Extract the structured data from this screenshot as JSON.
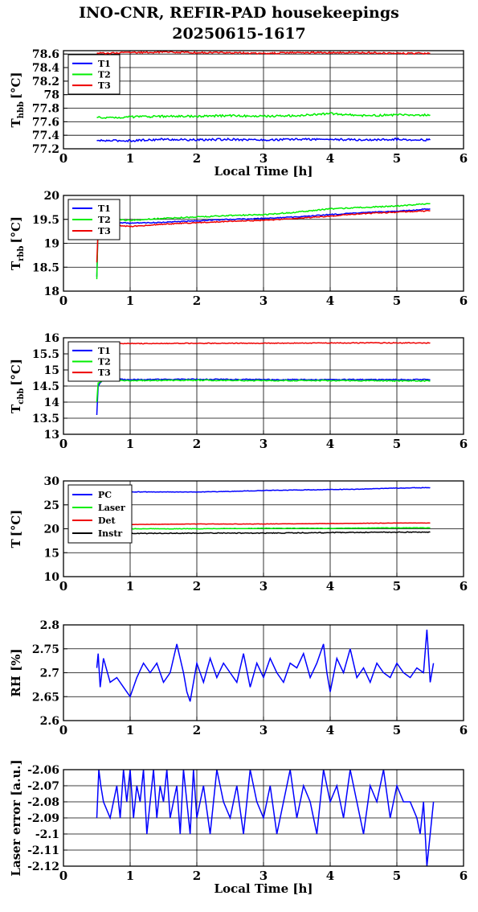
{
  "title_line1": "INO-CNR, REFIR-PAD housekeepings",
  "title_line2": "20250615-1617",
  "colors": {
    "blue": "#0000ff",
    "green": "#00ee00",
    "red": "#ee0000",
    "black": "#000000"
  },
  "chart_data": [
    {
      "type": "line",
      "ylabel": "T_hbb [°C]",
      "ylabel_main": "T",
      "ylabel_sub": "hbb",
      "ylabel_unit": "[°C]",
      "xlabel": "Local Time [h]",
      "xlim": [
        0,
        6
      ],
      "ylim": [
        77.2,
        78.65
      ],
      "yticks": [
        77.2,
        77.4,
        77.6,
        77.8,
        78,
        78.2,
        78.4,
        78.6
      ],
      "ytick_labels": [
        "77.2",
        "77.4",
        "77.6",
        "77.8",
        "78",
        "78.2",
        "78.4",
        "78.6"
      ],
      "xticks": [
        0,
        1,
        2,
        3,
        4,
        5,
        6
      ],
      "xtick_labels": [
        "0",
        "1",
        "2",
        "3",
        "4",
        "5",
        "6"
      ],
      "grid": true,
      "legend": "top-left",
      "series": [
        {
          "name": "T1",
          "color": "#0000ff",
          "x": [
            0.5,
            1,
            1.5,
            2,
            2.5,
            3,
            3.5,
            4,
            4.5,
            5,
            5.5
          ],
          "values": [
            77.32,
            77.32,
            77.34,
            77.33,
            77.34,
            77.33,
            77.34,
            77.34,
            77.33,
            77.34,
            77.33
          ],
          "noise": 0.015
        },
        {
          "name": "T2",
          "color": "#00ee00",
          "x": [
            0.5,
            1,
            1.5,
            2,
            2.5,
            3,
            3.5,
            4,
            4.5,
            5,
            5.5
          ],
          "values": [
            77.66,
            77.67,
            77.68,
            77.68,
            77.69,
            77.68,
            77.69,
            77.72,
            77.69,
            77.7,
            77.7
          ],
          "noise": 0.015
        },
        {
          "name": "T3",
          "color": "#ee0000",
          "x": [
            0.5,
            1,
            1.5,
            2,
            2.5,
            3,
            3.5,
            4,
            4.5,
            5,
            5.5
          ],
          "values": [
            78.61,
            78.62,
            78.63,
            78.62,
            78.62,
            78.61,
            78.62,
            78.62,
            78.62,
            78.61,
            78.61
          ],
          "noise": 0.012
        }
      ]
    },
    {
      "type": "line",
      "ylabel": "T_rbb [°C]",
      "ylabel_main": "T",
      "ylabel_sub": "rbb",
      "ylabel_unit": "[°C]",
      "xlabel": "",
      "xlim": [
        0,
        6
      ],
      "ylim": [
        18,
        20
      ],
      "yticks": [
        18,
        18.5,
        19,
        19.5,
        20
      ],
      "ytick_labels": [
        "18",
        "18.5",
        "19",
        "19.5",
        "20"
      ],
      "xticks": [
        0,
        1,
        2,
        3,
        4,
        5,
        6
      ],
      "xtick_labels": [
        "0",
        "1",
        "2",
        "3",
        "4",
        "5",
        "6"
      ],
      "grid": true,
      "legend": "top-left",
      "series": [
        {
          "name": "T1",
          "color": "#0000ff",
          "x": [
            0.5,
            0.52,
            0.6,
            1,
            1.5,
            2,
            2.5,
            3,
            3.5,
            4,
            4.5,
            5,
            5.5
          ],
          "values": [
            18.3,
            19.35,
            19.45,
            19.42,
            19.44,
            19.47,
            19.5,
            19.52,
            19.55,
            19.6,
            19.64,
            19.67,
            19.72
          ],
          "noise": 0.01
        },
        {
          "name": "T2",
          "color": "#00ee00",
          "x": [
            0.5,
            0.52,
            0.6,
            1,
            1.5,
            2,
            2.5,
            3,
            3.5,
            4,
            4.5,
            5,
            5.5
          ],
          "values": [
            18.25,
            19.4,
            19.5,
            19.48,
            19.52,
            19.55,
            19.58,
            19.6,
            19.65,
            19.72,
            19.75,
            19.78,
            19.83
          ],
          "noise": 0.012
        },
        {
          "name": "T3",
          "color": "#ee0000",
          "x": [
            0.5,
            0.52,
            0.6,
            1,
            1.5,
            2,
            2.5,
            3,
            3.5,
            4,
            4.5,
            5,
            5.5
          ],
          "values": [
            18.6,
            19.3,
            19.4,
            19.35,
            19.4,
            19.43,
            19.46,
            19.48,
            19.52,
            19.57,
            19.62,
            19.65,
            19.68
          ],
          "noise": 0.01
        }
      ]
    },
    {
      "type": "line",
      "ylabel": "T_cbb [°C]",
      "ylabel_main": "T",
      "ylabel_sub": "cbb",
      "ylabel_unit": "[°C]",
      "xlabel": "",
      "xlim": [
        0,
        6
      ],
      "ylim": [
        13,
        16
      ],
      "yticks": [
        13,
        13.5,
        14,
        14.5,
        15,
        15.5,
        16
      ],
      "ytick_labels": [
        "13",
        "13.5",
        "14",
        "14.5",
        "15",
        "15.5",
        "16"
      ],
      "xticks": [
        0,
        1,
        2,
        3,
        4,
        5,
        6
      ],
      "xtick_labels": [
        "0",
        "1",
        "2",
        "3",
        "4",
        "5",
        "6"
      ],
      "grid": true,
      "legend": "top-left",
      "series": [
        {
          "name": "T1",
          "color": "#0000ff",
          "x": [
            0.5,
            0.52,
            0.6,
            1,
            2,
            3,
            4,
            5,
            5.5
          ],
          "values": [
            13.6,
            14.5,
            14.72,
            14.7,
            14.71,
            14.7,
            14.7,
            14.7,
            14.7
          ],
          "noise": 0.015
        },
        {
          "name": "T2",
          "color": "#00ee00",
          "x": [
            0.5,
            0.52,
            0.6,
            1,
            2,
            3,
            4,
            5,
            5.5
          ],
          "values": [
            14.0,
            14.6,
            14.68,
            14.67,
            14.68,
            14.67,
            14.67,
            14.66,
            14.66
          ],
          "noise": 0.015
        },
        {
          "name": "T3",
          "color": "#ee0000",
          "x": [
            0.5,
            0.6,
            1,
            2,
            3,
            4,
            5,
            5.5
          ],
          "values": [
            15.8,
            15.82,
            15.82,
            15.83,
            15.83,
            15.84,
            15.84,
            15.84
          ],
          "noise": 0.012
        }
      ]
    },
    {
      "type": "line",
      "ylabel": "T [°C]",
      "ylabel_main": "T",
      "ylabel_sub": "",
      "ylabel_unit": "[°C]",
      "xlabel": "",
      "xlim": [
        0,
        6
      ],
      "ylim": [
        10,
        30
      ],
      "yticks": [
        10,
        15,
        20,
        25,
        30
      ],
      "ytick_labels": [
        "10",
        "15",
        "20",
        "25",
        "30"
      ],
      "xticks": [
        0,
        1,
        2,
        3,
        4,
        5,
        6
      ],
      "xtick_labels": [
        "0",
        "1",
        "2",
        "3",
        "4",
        "5",
        "6"
      ],
      "grid": true,
      "legend": "top-left",
      "series": [
        {
          "name": "PC",
          "color": "#0000ff",
          "x": [
            0.5,
            1,
            1.5,
            2,
            2.5,
            3,
            3.5,
            4,
            4.5,
            5,
            5.5
          ],
          "values": [
            27.6,
            27.7,
            27.7,
            27.7,
            27.8,
            28.0,
            28.1,
            28.2,
            28.3,
            28.5,
            28.6
          ],
          "noise": 0.05
        },
        {
          "name": "Laser",
          "color": "#00ee00",
          "x": [
            0.5,
            1,
            2,
            3,
            4,
            5,
            5.5
          ],
          "values": [
            19.9,
            20.0,
            20.0,
            20.1,
            20.1,
            20.2,
            20.2
          ],
          "noise": 0.05
        },
        {
          "name": "Det",
          "color": "#ee0000",
          "x": [
            0.5,
            1,
            2,
            3,
            4,
            5,
            5.5
          ],
          "values": [
            20.8,
            20.9,
            21.0,
            21.0,
            21.1,
            21.2,
            21.2
          ],
          "noise": 0.03
        },
        {
          "name": "Instr",
          "color": "#000000",
          "x": [
            0.5,
            1,
            2,
            3,
            4,
            5,
            5.5
          ],
          "values": [
            19.0,
            19.0,
            19.1,
            19.1,
            19.2,
            19.3,
            19.3
          ],
          "noise": 0.08
        }
      ]
    },
    {
      "type": "line",
      "ylabel": "RH [%]",
      "ylabel_main": "RH [%]",
      "ylabel_sub": "",
      "ylabel_unit": "",
      "xlabel": "",
      "xlim": [
        0,
        6
      ],
      "ylim": [
        2.6,
        2.8
      ],
      "yticks": [
        2.6,
        2.65,
        2.7,
        2.75,
        2.8
      ],
      "ytick_labels": [
        "2.6",
        "2.65",
        "2.7",
        "2.75",
        "2.8"
      ],
      "xticks": [
        0,
        1,
        2,
        3,
        4,
        5,
        6
      ],
      "xtick_labels": [
        "0",
        "1",
        "2",
        "3",
        "4",
        "5",
        "6"
      ],
      "grid": true,
      "legend": "none",
      "series": [
        {
          "color": "#0000ff",
          "x": [
            0.5,
            0.52,
            0.55,
            0.6,
            0.7,
            0.8,
            0.9,
            1.0,
            1.1,
            1.2,
            1.3,
            1.4,
            1.5,
            1.6,
            1.7,
            1.8,
            1.85,
            1.9,
            2.0,
            2.1,
            2.2,
            2.3,
            2.4,
            2.5,
            2.6,
            2.7,
            2.8,
            2.9,
            3.0,
            3.1,
            3.2,
            3.3,
            3.4,
            3.5,
            3.6,
            3.7,
            3.8,
            3.9,
            3.95,
            4.0,
            4.1,
            4.2,
            4.3,
            4.4,
            4.5,
            4.6,
            4.7,
            4.8,
            4.9,
            5.0,
            5.1,
            5.2,
            5.3,
            5.4,
            5.45,
            5.5,
            5.55
          ],
          "values": [
            2.71,
            2.74,
            2.67,
            2.73,
            2.68,
            2.69,
            2.67,
            2.65,
            2.69,
            2.72,
            2.7,
            2.72,
            2.68,
            2.7,
            2.76,
            2.7,
            2.66,
            2.64,
            2.72,
            2.68,
            2.73,
            2.69,
            2.72,
            2.7,
            2.68,
            2.74,
            2.67,
            2.72,
            2.69,
            2.73,
            2.7,
            2.68,
            2.72,
            2.71,
            2.74,
            2.69,
            2.72,
            2.76,
            2.7,
            2.66,
            2.73,
            2.7,
            2.75,
            2.69,
            2.71,
            2.68,
            2.72,
            2.7,
            2.69,
            2.72,
            2.7,
            2.69,
            2.71,
            2.7,
            2.79,
            2.68,
            2.72
          ],
          "noise": 0.0
        }
      ]
    },
    {
      "type": "line",
      "ylabel": "Laser error [a.u.]",
      "ylabel_main": "Laser error [a.u.]",
      "ylabel_sub": "",
      "ylabel_unit": "",
      "xlabel": "Local Time [h]",
      "xlim": [
        0,
        6
      ],
      "ylim": [
        -2.12,
        -2.06
      ],
      "yticks": [
        -2.12,
        -2.11,
        -2.1,
        -2.09,
        -2.08,
        -2.07,
        -2.06
      ],
      "ytick_labels": [
        "-2.12",
        "-2.11",
        "-2.1",
        "-2.09",
        "-2.08",
        "-2.07",
        "-2.06"
      ],
      "xticks": [
        0,
        1,
        2,
        3,
        4,
        5,
        6
      ],
      "xtick_labels": [
        "0",
        "1",
        "2",
        "3",
        "4",
        "5",
        "6"
      ],
      "grid": true,
      "legend": "none",
      "series": [
        {
          "color": "#0000ff",
          "x": [
            0.5,
            0.53,
            0.56,
            0.6,
            0.7,
            0.8,
            0.85,
            0.9,
            0.95,
            1.0,
            1.05,
            1.1,
            1.15,
            1.2,
            1.25,
            1.3,
            1.35,
            1.4,
            1.45,
            1.5,
            1.55,
            1.6,
            1.65,
            1.7,
            1.75,
            1.8,
            1.85,
            1.9,
            1.95,
            2.0,
            2.1,
            2.2,
            2.3,
            2.4,
            2.5,
            2.6,
            2.7,
            2.8,
            2.9,
            3.0,
            3.1,
            3.2,
            3.3,
            3.4,
            3.5,
            3.6,
            3.7,
            3.8,
            3.9,
            4.0,
            4.1,
            4.2,
            4.3,
            4.4,
            4.5,
            4.6,
            4.7,
            4.8,
            4.9,
            5.0,
            5.1,
            5.2,
            5.3,
            5.35,
            5.4,
            5.45,
            5.5,
            5.55
          ],
          "values": [
            -2.09,
            -2.06,
            -2.07,
            -2.08,
            -2.09,
            -2.07,
            -2.09,
            -2.06,
            -2.08,
            -2.06,
            -2.09,
            -2.07,
            -2.08,
            -2.06,
            -2.1,
            -2.08,
            -2.06,
            -2.09,
            -2.07,
            -2.08,
            -2.06,
            -2.09,
            -2.08,
            -2.07,
            -2.1,
            -2.06,
            -2.08,
            -2.1,
            -2.06,
            -2.09,
            -2.07,
            -2.1,
            -2.06,
            -2.08,
            -2.09,
            -2.07,
            -2.1,
            -2.06,
            -2.08,
            -2.09,
            -2.07,
            -2.1,
            -2.08,
            -2.06,
            -2.09,
            -2.07,
            -2.08,
            -2.1,
            -2.06,
            -2.08,
            -2.07,
            -2.09,
            -2.06,
            -2.08,
            -2.1,
            -2.07,
            -2.08,
            -2.06,
            -2.09,
            -2.07,
            -2.08,
            -2.08,
            -2.09,
            -2.1,
            -2.08,
            -2.12,
            -2.1,
            -2.08
          ],
          "noise": 0.0
        }
      ]
    }
  ]
}
